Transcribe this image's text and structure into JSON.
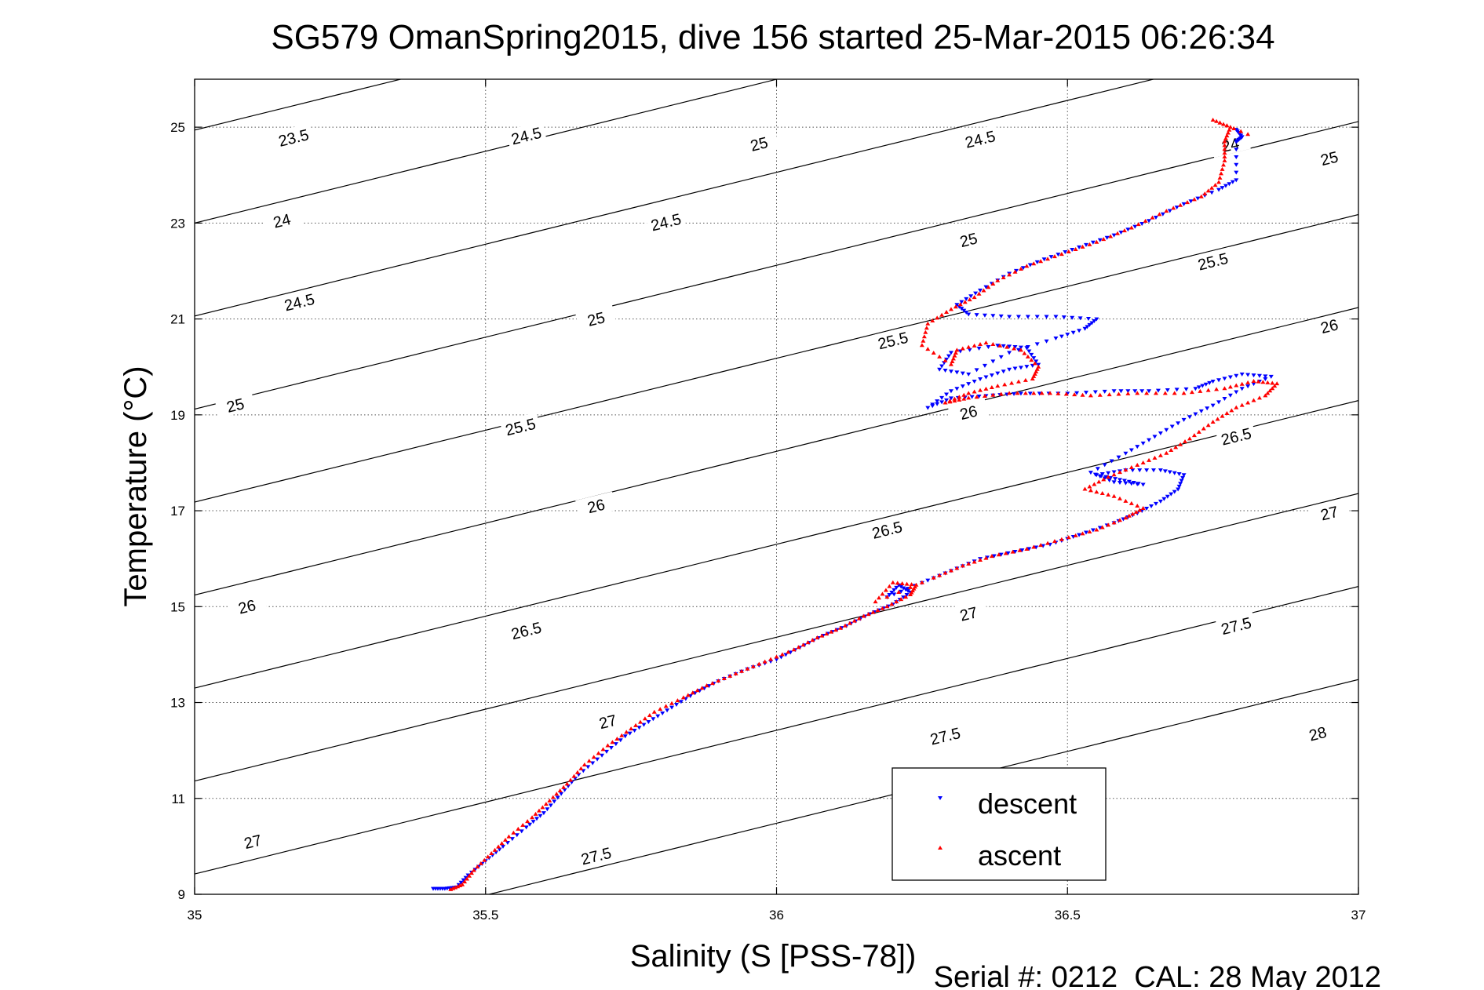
{
  "chart_data": {
    "type": "scatter",
    "title": "SG579 OmanSpring2015, dive 156 started 25-Mar-2015 06:26:34",
    "xlabel": "Salinity (S [PSS-78])",
    "ylabel": "Temperature (°C)",
    "xlim": [
      35,
      37
    ],
    "ylim": [
      9,
      26
    ],
    "x_ticks": [
      35,
      35.5,
      36,
      36.5,
      37
    ],
    "x_tick_labels": [
      "35",
      "35.5",
      "36",
      "36.5",
      "37"
    ],
    "y_ticks": [
      9,
      11,
      13,
      15,
      17,
      19,
      21,
      23,
      25
    ],
    "y_tick_labels": [
      "9",
      "11",
      "13",
      "15",
      "17",
      "19",
      "21",
      "23",
      "25"
    ],
    "grid": true,
    "legend_position": "bottom-right",
    "footnote": "Serial #: 0212  CAL: 28 May 2012",
    "contours": {
      "levels": [
        23.5,
        24,
        24.5,
        25,
        25.5,
        26,
        26.5,
        27,
        27.5,
        28
      ],
      "labels": [
        {
          "text": "23.5",
          "x": 35.17,
          "y": 24.78
        },
        {
          "text": "24",
          "x": 36.78,
          "y": 24.63
        },
        {
          "text": "24.5",
          "x": 35.57,
          "y": 24.82
        },
        {
          "text": "25",
          "x": 35.97,
          "y": 24.65
        },
        {
          "text": "24.5",
          "x": 36.35,
          "y": 24.75
        },
        {
          "text": "25",
          "x": 36.95,
          "y": 24.35
        },
        {
          "text": "24",
          "x": 35.15,
          "y": 23.05
        },
        {
          "text": "24.5",
          "x": 35.81,
          "y": 23.02
        },
        {
          "text": "25",
          "x": 36.33,
          "y": 22.65
        },
        {
          "text": "25.5",
          "x": 36.75,
          "y": 22.2
        },
        {
          "text": "24.5",
          "x": 35.18,
          "y": 21.35
        },
        {
          "text": "25",
          "x": 35.69,
          "y": 21.0
        },
        {
          "text": "25.5",
          "x": 36.2,
          "y": 20.55
        },
        {
          "text": "26",
          "x": 36.95,
          "y": 20.85
        },
        {
          "text": "25",
          "x": 35.07,
          "y": 19.2
        },
        {
          "text": "25.5",
          "x": 35.56,
          "y": 18.75
        },
        {
          "text": "26",
          "x": 36.33,
          "y": 19.05
        },
        {
          "text": "26.5",
          "x": 36.79,
          "y": 18.55
        },
        {
          "text": "26",
          "x": 35.69,
          "y": 17.1
        },
        {
          "text": "26.5",
          "x": 36.19,
          "y": 16.6
        },
        {
          "text": "27",
          "x": 36.95,
          "y": 16.95
        },
        {
          "text": "26",
          "x": 35.09,
          "y": 15.0
        },
        {
          "text": "26.5",
          "x": 35.57,
          "y": 14.5
        },
        {
          "text": "27",
          "x": 36.33,
          "y": 14.85
        },
        {
          "text": "27.5",
          "x": 36.79,
          "y": 14.6
        },
        {
          "text": "27",
          "x": 35.71,
          "y": 12.6
        },
        {
          "text": "27.5",
          "x": 36.29,
          "y": 12.3
        },
        {
          "text": "28",
          "x": 36.93,
          "y": 12.35
        },
        {
          "text": "27",
          "x": 35.1,
          "y": 10.1
        },
        {
          "text": "27.5",
          "x": 35.69,
          "y": 9.8
        }
      ]
    },
    "series": [
      {
        "name": "descent",
        "color": "#0000ff",
        "marker": "triangle-down",
        "points": [
          [
            35.41,
            9.12
          ],
          [
            35.43,
            9.12
          ],
          [
            35.45,
            9.15
          ],
          [
            35.47,
            9.4
          ],
          [
            35.5,
            9.7
          ],
          [
            35.53,
            10.0
          ],
          [
            35.57,
            10.4
          ],
          [
            35.6,
            10.7
          ],
          [
            35.63,
            11.1
          ],
          [
            35.66,
            11.5
          ],
          [
            35.7,
            11.9
          ],
          [
            35.74,
            12.3
          ],
          [
            35.78,
            12.6
          ],
          [
            35.82,
            12.9
          ],
          [
            35.86,
            13.2
          ],
          [
            35.9,
            13.45
          ],
          [
            35.95,
            13.7
          ],
          [
            36.0,
            13.9
          ],
          [
            36.04,
            14.15
          ],
          [
            36.08,
            14.4
          ],
          [
            36.12,
            14.6
          ],
          [
            36.16,
            14.85
          ],
          [
            36.2,
            15.05
          ],
          [
            36.23,
            15.3
          ],
          [
            36.21,
            15.45
          ],
          [
            36.19,
            15.2
          ],
          [
            36.25,
            15.5
          ],
          [
            36.3,
            15.75
          ],
          [
            36.35,
            16.0
          ],
          [
            36.41,
            16.15
          ],
          [
            36.47,
            16.3
          ],
          [
            36.52,
            16.5
          ],
          [
            36.58,
            16.75
          ],
          [
            36.62,
            16.95
          ],
          [
            36.66,
            17.2
          ],
          [
            36.69,
            17.45
          ],
          [
            36.7,
            17.75
          ],
          [
            36.66,
            17.85
          ],
          [
            36.6,
            17.85
          ],
          [
            36.55,
            17.75
          ],
          [
            36.59,
            17.65
          ],
          [
            36.63,
            17.55
          ],
          [
            36.58,
            17.6
          ],
          [
            36.54,
            17.8
          ],
          [
            36.6,
            18.2
          ],
          [
            36.65,
            18.55
          ],
          [
            36.7,
            18.9
          ],
          [
            36.75,
            19.2
          ],
          [
            36.8,
            19.55
          ],
          [
            36.85,
            19.8
          ],
          [
            36.8,
            19.85
          ],
          [
            36.75,
            19.7
          ],
          [
            36.72,
            19.55
          ],
          [
            36.64,
            19.5
          ],
          [
            36.58,
            19.5
          ],
          [
            36.5,
            19.45
          ],
          [
            36.42,
            19.45
          ],
          [
            36.36,
            19.4
          ],
          [
            36.3,
            19.35
          ],
          [
            36.26,
            19.15
          ],
          [
            36.3,
            19.5
          ],
          [
            36.35,
            19.75
          ],
          [
            36.4,
            19.95
          ],
          [
            36.45,
            20.05
          ],
          [
            36.43,
            20.4
          ],
          [
            36.38,
            20.45
          ],
          [
            36.3,
            20.3
          ],
          [
            36.28,
            19.95
          ],
          [
            36.33,
            19.85
          ],
          [
            36.4,
            20.3
          ],
          [
            36.48,
            20.6
          ],
          [
            36.53,
            20.8
          ],
          [
            36.55,
            21.0
          ],
          [
            36.48,
            21.05
          ],
          [
            36.4,
            21.05
          ],
          [
            36.33,
            21.1
          ],
          [
            36.31,
            21.3
          ],
          [
            36.35,
            21.6
          ],
          [
            36.4,
            21.95
          ],
          [
            36.46,
            22.25
          ],
          [
            36.52,
            22.5
          ],
          [
            36.58,
            22.75
          ],
          [
            36.64,
            23.05
          ],
          [
            36.7,
            23.4
          ],
          [
            36.76,
            23.7
          ],
          [
            36.79,
            23.9
          ],
          [
            36.79,
            24.7
          ],
          [
            36.8,
            24.8
          ],
          [
            36.79,
            24.95
          ]
        ]
      },
      {
        "name": "ascent",
        "color": "#ff0000",
        "marker": "triangle-up",
        "points": [
          [
            35.44,
            9.1
          ],
          [
            35.46,
            9.2
          ],
          [
            35.48,
            9.5
          ],
          [
            35.51,
            9.85
          ],
          [
            35.54,
            10.2
          ],
          [
            35.58,
            10.6
          ],
          [
            35.61,
            10.95
          ],
          [
            35.64,
            11.3
          ],
          [
            35.67,
            11.7
          ],
          [
            35.71,
            12.1
          ],
          [
            35.75,
            12.45
          ],
          [
            35.79,
            12.8
          ],
          [
            35.84,
            13.1
          ],
          [
            35.88,
            13.35
          ],
          [
            35.93,
            13.6
          ],
          [
            35.98,
            13.85
          ],
          [
            36.03,
            14.1
          ],
          [
            36.07,
            14.35
          ],
          [
            36.11,
            14.55
          ],
          [
            36.15,
            14.8
          ],
          [
            36.19,
            15.0
          ],
          [
            36.23,
            15.25
          ],
          [
            36.24,
            15.45
          ],
          [
            36.2,
            15.5
          ],
          [
            36.17,
            15.1
          ],
          [
            36.27,
            15.6
          ],
          [
            36.32,
            15.85
          ],
          [
            36.37,
            16.05
          ],
          [
            36.43,
            16.2
          ],
          [
            36.49,
            16.4
          ],
          [
            36.55,
            16.6
          ],
          [
            36.6,
            16.85
          ],
          [
            36.63,
            17.05
          ],
          [
            36.58,
            17.3
          ],
          [
            36.53,
            17.45
          ],
          [
            36.57,
            17.7
          ],
          [
            36.62,
            17.95
          ],
          [
            36.67,
            18.2
          ],
          [
            36.71,
            18.5
          ],
          [
            36.75,
            18.85
          ],
          [
            36.79,
            19.15
          ],
          [
            36.84,
            19.4
          ],
          [
            36.86,
            19.65
          ],
          [
            36.82,
            19.7
          ],
          [
            36.77,
            19.55
          ],
          [
            36.7,
            19.45
          ],
          [
            36.62,
            19.45
          ],
          [
            36.54,
            19.4
          ],
          [
            36.47,
            19.45
          ],
          [
            36.4,
            19.45
          ],
          [
            36.33,
            19.35
          ],
          [
            36.29,
            19.25
          ],
          [
            36.33,
            19.45
          ],
          [
            36.38,
            19.6
          ],
          [
            36.44,
            19.75
          ],
          [
            36.45,
            20.0
          ],
          [
            36.42,
            20.35
          ],
          [
            36.36,
            20.5
          ],
          [
            36.31,
            20.35
          ],
          [
            36.3,
            20.05
          ],
          [
            36.25,
            20.45
          ],
          [
            36.26,
            20.9
          ],
          [
            36.3,
            21.2
          ],
          [
            36.34,
            21.45
          ],
          [
            36.38,
            21.8
          ],
          [
            36.43,
            22.1
          ],
          [
            36.49,
            22.35
          ],
          [
            36.55,
            22.6
          ],
          [
            36.61,
            22.9
          ],
          [
            36.67,
            23.25
          ],
          [
            36.73,
            23.55
          ],
          [
            36.76,
            23.85
          ],
          [
            36.77,
            24.3
          ],
          [
            36.77,
            24.7
          ],
          [
            36.78,
            25.0
          ],
          [
            36.75,
            25.15
          ],
          [
            36.81,
            24.85
          ]
        ]
      }
    ]
  }
}
